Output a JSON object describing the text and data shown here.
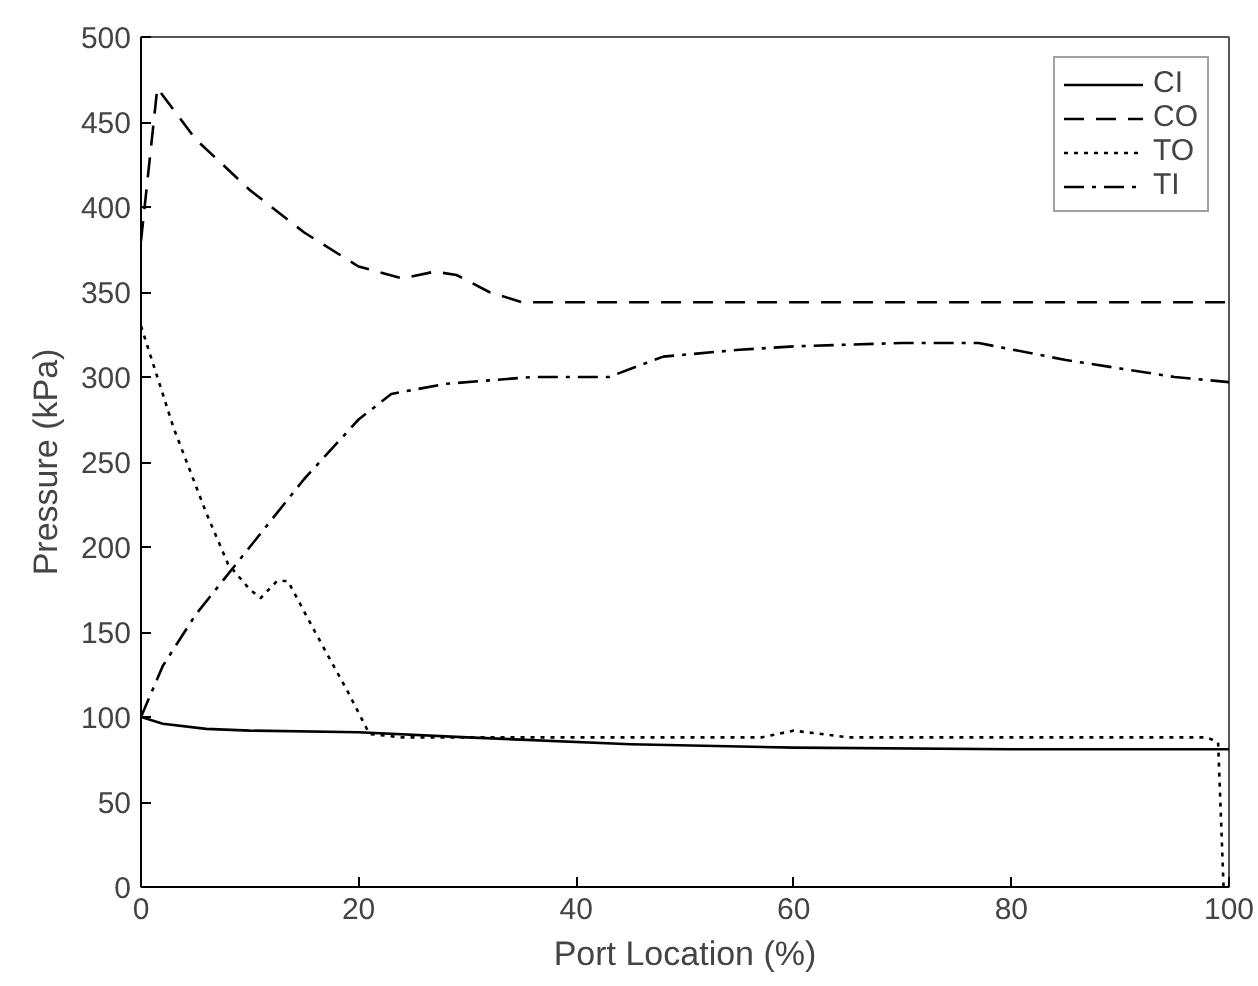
{
  "chart_data": {
    "type": "line",
    "xlabel": "Port Location (%)",
    "ylabel": "Pressure (kPa)",
    "xlim": [
      0,
      100
    ],
    "ylim": [
      0,
      500
    ],
    "xticks": [
      0,
      20,
      40,
      60,
      80,
      100
    ],
    "yticks": [
      0,
      50,
      100,
      150,
      200,
      250,
      300,
      350,
      400,
      450,
      500
    ],
    "grid": false,
    "legend": "top right",
    "marker": "none",
    "series": [
      {
        "name": "CI",
        "color": "#000000",
        "line_style": "solid",
        "x": [
          0,
          2,
          6,
          10,
          20,
          30,
          45,
          60,
          80,
          100
        ],
        "values": [
          100,
          96,
          93,
          92,
          91,
          88,
          84,
          82,
          81,
          81
        ]
      },
      {
        "name": "CO",
        "color": "#000000",
        "line_style": "dashed",
        "x": [
          0,
          1.5,
          5,
          10,
          15,
          20,
          24,
          27,
          29,
          32,
          35,
          60,
          100
        ],
        "values": [
          380,
          470,
          440,
          410,
          385,
          365,
          358,
          362,
          360,
          350,
          344,
          344,
          344
        ]
      },
      {
        "name": "TO",
        "color": "#000000",
        "line_style": "dotted",
        "x": [
          0,
          1,
          3,
          6,
          8,
          10,
          11,
          12.5,
          13.5,
          16,
          19,
          21,
          24,
          50,
          57,
          60,
          65,
          98,
          99,
          99.5
        ],
        "values": [
          330,
          310,
          270,
          220,
          190,
          175,
          170,
          180,
          180,
          150,
          115,
          90,
          88,
          88,
          88,
          92,
          88,
          88,
          85,
          0
        ]
      },
      {
        "name": "TI",
        "color": "#000000",
        "line_style": "dashdot",
        "x": [
          0,
          2,
          5,
          10,
          15,
          20,
          23,
          28,
          36,
          43,
          48,
          55,
          60,
          70,
          77,
          85,
          95,
          100
        ],
        "values": [
          100,
          130,
          160,
          200,
          240,
          275,
          290,
          296,
          300,
          300,
          312,
          316,
          318,
          320,
          320,
          310,
          300,
          297
        ]
      }
    ]
  }
}
